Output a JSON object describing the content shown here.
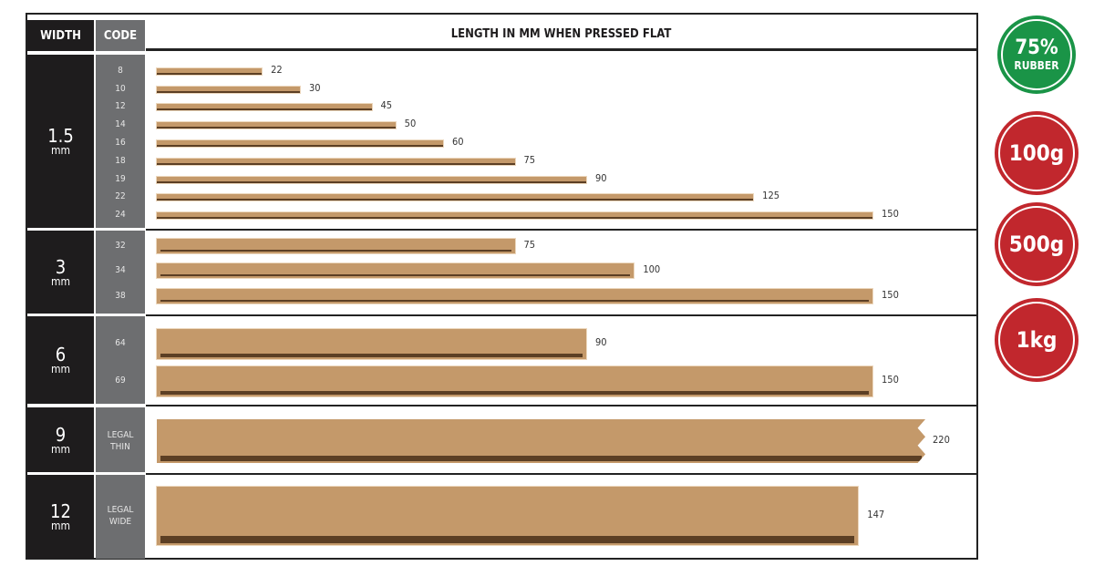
{
  "chart_data": {
    "type": "bar",
    "orientation": "horizontal",
    "title": "LENGTH IN MM WHEN PRESSED FLAT",
    "column_headers": {
      "width": "WIDTH",
      "code": "CODE"
    },
    "groups": [
      {
        "width": "1.5",
        "unit": "mm",
        "rows": [
          {
            "code": "8",
            "value": 22
          },
          {
            "code": "10",
            "value": 30
          },
          {
            "code": "12",
            "value": 45
          },
          {
            "code": "14",
            "value": 50
          },
          {
            "code": "16",
            "value": 60
          },
          {
            "code": "18",
            "value": 75
          },
          {
            "code": "19",
            "value": 90
          },
          {
            "code": "22",
            "value": 125
          },
          {
            "code": "24",
            "value": 150
          }
        ]
      },
      {
        "width": "3",
        "unit": "mm",
        "rows": [
          {
            "code": "32",
            "value": 75
          },
          {
            "code": "34",
            "value": 100
          },
          {
            "code": "38",
            "value": 150
          }
        ]
      },
      {
        "width": "6",
        "unit": "mm",
        "rows": [
          {
            "code": "64",
            "value": 90
          },
          {
            "code": "69",
            "value": 150
          }
        ]
      },
      {
        "width": "9",
        "unit": "mm",
        "rows": [
          {
            "code": "LEGAL\nTHIN",
            "value": 220,
            "truncated": true
          }
        ]
      },
      {
        "width": "12",
        "unit": "mm",
        "rows": [
          {
            "code": "LEGAL\nWIDE",
            "value": 147
          }
        ]
      }
    ],
    "colors": {
      "bar": "#c4996a",
      "bar_shadow": "#5c3f24",
      "width_col": "#1e1c1d",
      "code_col": "#6d6e70"
    }
  },
  "badges": [
    {
      "line1": "75%",
      "line2": "RUBBER",
      "color": "#1a9447"
    },
    {
      "line1": "100g",
      "color": "#c1272d"
    },
    {
      "line1": "500g",
      "color": "#c1272d"
    },
    {
      "line1": "1kg",
      "color": "#c1272d"
    }
  ]
}
